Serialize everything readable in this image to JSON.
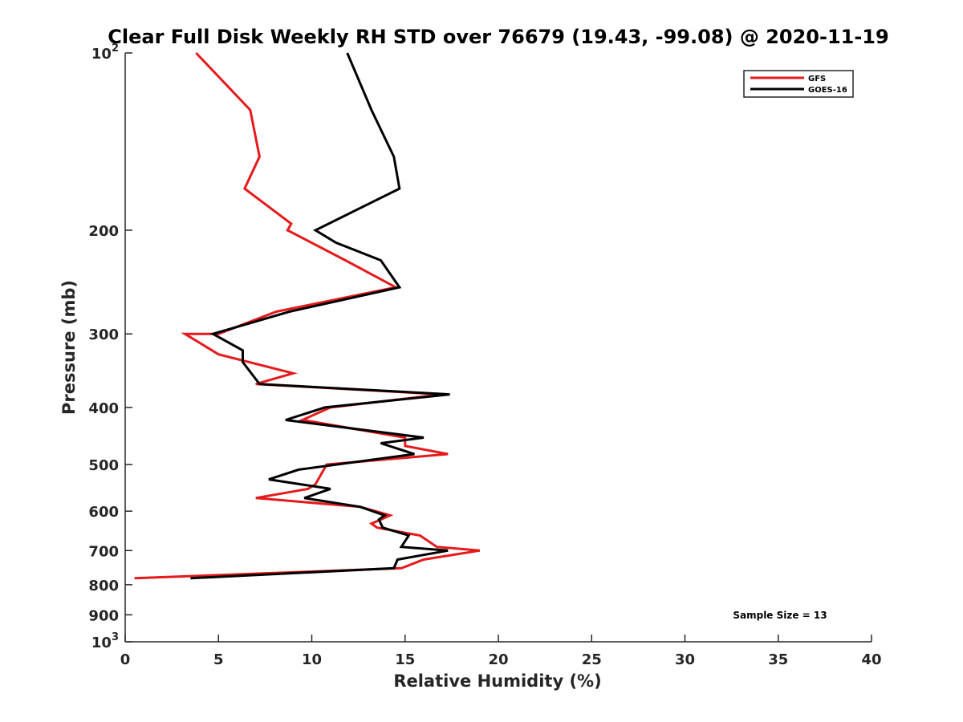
{
  "chart_data": {
    "type": "line",
    "title": "Clear Full Disk Weekly RH STD over 76679 (19.43, -99.08) @ 2020-11-19",
    "xlabel": "Relative Humidity (%)",
    "ylabel": "Pressure (mb)",
    "xlim": [
      0,
      40
    ],
    "ylim": [
      100,
      1000
    ],
    "y_scale": "log",
    "y_reversed": true,
    "grid": false,
    "legend_position": "top-right",
    "x_ticks": [
      0,
      5,
      10,
      15,
      20,
      25,
      30,
      35,
      40
    ],
    "y_ticks": [
      {
        "value": 100,
        "base": "10",
        "exp": "2"
      },
      {
        "value": 200,
        "label": "200"
      },
      {
        "value": 300,
        "label": "300"
      },
      {
        "value": 400,
        "label": "400"
      },
      {
        "value": 500,
        "label": "500"
      },
      {
        "value": 600,
        "label": "600"
      },
      {
        "value": 700,
        "label": "700"
      },
      {
        "value": 800,
        "label": "800"
      },
      {
        "value": 900,
        "label": "900"
      },
      {
        "value": 1000,
        "base": "10",
        "exp": "3"
      }
    ],
    "series": [
      {
        "name": "GFS",
        "color": "#e41a1c",
        "points": [
          [
            3.8,
            100
          ],
          [
            6.7,
            125
          ],
          [
            7.2,
            150
          ],
          [
            6.4,
            170
          ],
          [
            8.9,
            195
          ],
          [
            8.7,
            200
          ],
          [
            11.8,
            225
          ],
          [
            14.5,
            250
          ],
          [
            8.1,
            275
          ],
          [
            5.0,
            300
          ],
          [
            3.2,
            300
          ],
          [
            5.0,
            325
          ],
          [
            9.0,
            350
          ],
          [
            7.0,
            365
          ],
          [
            17.0,
            380
          ],
          [
            11.0,
            400
          ],
          [
            9.5,
            420
          ],
          [
            15.0,
            450
          ],
          [
            15.0,
            465
          ],
          [
            17.3,
            480
          ],
          [
            10.8,
            500
          ],
          [
            10.2,
            540
          ],
          [
            9.8,
            550
          ],
          [
            7.0,
            570
          ],
          [
            12.6,
            590
          ],
          [
            14.2,
            610
          ],
          [
            13.2,
            630
          ],
          [
            13.5,
            640
          ],
          [
            15.8,
            660
          ],
          [
            16.7,
            690
          ],
          [
            19.0,
            700
          ],
          [
            16.0,
            725
          ],
          [
            14.8,
            750
          ],
          [
            0.5,
            780
          ]
        ]
      },
      {
        "name": "GOES-16",
        "color": "#000000",
        "points": [
          [
            11.9,
            100
          ],
          [
            13.2,
            125
          ],
          [
            14.4,
            150
          ],
          [
            14.7,
            170
          ],
          [
            10.2,
            200
          ],
          [
            11.3,
            210
          ],
          [
            13.7,
            225
          ],
          [
            14.7,
            250
          ],
          [
            8.8,
            275
          ],
          [
            6.3,
            290
          ],
          [
            4.7,
            300
          ],
          [
            6.3,
            320
          ],
          [
            6.3,
            330
          ],
          [
            6.3,
            335
          ],
          [
            7.2,
            365
          ],
          [
            17.4,
            380
          ],
          [
            10.7,
            400
          ],
          [
            8.6,
            420
          ],
          [
            16.0,
            450
          ],
          [
            13.7,
            460
          ],
          [
            15.5,
            480
          ],
          [
            9.3,
            510
          ],
          [
            7.7,
            530
          ],
          [
            11.0,
            550
          ],
          [
            9.6,
            570
          ],
          [
            12.6,
            590
          ],
          [
            13.9,
            610
          ],
          [
            13.6,
            620
          ],
          [
            13.8,
            640
          ],
          [
            15.2,
            660
          ],
          [
            14.8,
            690
          ],
          [
            17.3,
            700
          ],
          [
            14.6,
            725
          ],
          [
            14.4,
            750
          ],
          [
            3.5,
            780
          ]
        ]
      }
    ],
    "annotation": "Sample Size = 13"
  }
}
